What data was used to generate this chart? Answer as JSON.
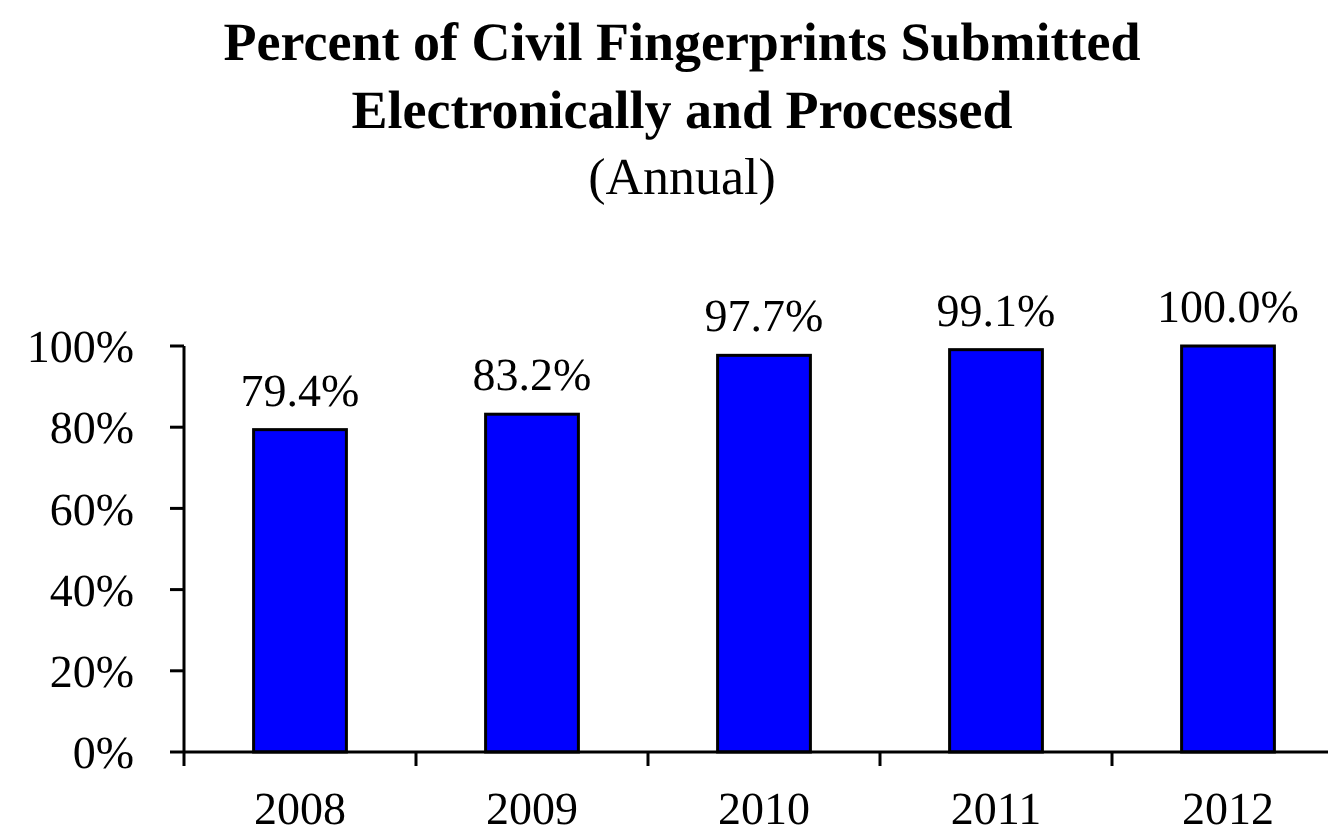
{
  "chart_data": {
    "type": "bar",
    "title": "Percent of Civil Fingerprints Submitted Electronically and Processed",
    "subtitle": "(Annual)",
    "categories": [
      "2008",
      "2009",
      "2010",
      "2011",
      "2012"
    ],
    "values": [
      79.4,
      83.2,
      97.7,
      99.1,
      100.0
    ],
    "value_labels": [
      "79.4%",
      "83.2%",
      "97.7%",
      "99.1%",
      "100.0%"
    ],
    "color": "#0000ff",
    "ylim": [
      0,
      100
    ],
    "yticks": [
      {
        "value": 0,
        "label": "0%"
      },
      {
        "value": 20,
        "label": "20%"
      },
      {
        "value": 40,
        "label": "40%"
      },
      {
        "value": 60,
        "label": "60%"
      },
      {
        "value": 80,
        "label": "80%"
      },
      {
        "value": 100,
        "label": "100%"
      }
    ]
  }
}
